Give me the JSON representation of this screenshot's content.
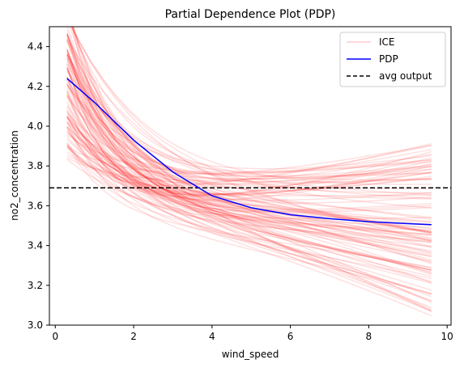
{
  "chart_data": {
    "type": "line",
    "title": "Partial Dependence Plot (PDP)",
    "xlabel": "wind_speed",
    "ylabel": "no2_concentration",
    "xlim": [
      -0.15,
      10.1
    ],
    "ylim": [
      3.0,
      4.5
    ],
    "x_ticks": [
      0,
      2,
      4,
      6,
      8,
      10
    ],
    "y_ticks": [
      3.0,
      3.2,
      3.4,
      3.6,
      3.8,
      4.0,
      4.2,
      4.4
    ],
    "x_tick_labels": [
      "0",
      "2",
      "4",
      "6",
      "8",
      "10"
    ],
    "y_tick_labels": [
      "3.0",
      "3.2",
      "3.4",
      "3.6",
      "3.8",
      "4.0",
      "4.2",
      "4.4"
    ],
    "grid": false,
    "legend_position": "top-right",
    "legend": [
      {
        "label": "ICE",
        "color": "#ff0000",
        "style": "line-faint"
      },
      {
        "label": "PDP",
        "color": "#0000ff",
        "style": "line"
      },
      {
        "label": "avg output",
        "color": "#000000",
        "style": "dashed"
      }
    ],
    "series": [
      {
        "name": "PDP",
        "color": "#0000ff",
        "x": [
          0.3,
          1.0,
          2.0,
          3.0,
          4.0,
          5.0,
          6.0,
          7.0,
          8.0,
          9.0,
          9.6
        ],
        "y": [
          4.24,
          4.12,
          3.93,
          3.77,
          3.65,
          3.59,
          3.555,
          3.535,
          3.52,
          3.51,
          3.505
        ]
      },
      {
        "name": "avg output",
        "color": "#000000",
        "constant_y": 3.69
      }
    ],
    "ice_curves": {
      "name": "ICE",
      "color": "#ff0000",
      "opacity": 0.12,
      "count": 110,
      "x_range": [
        0.3,
        9.6
      ],
      "start_y_range": [
        3.82,
        4.62
      ],
      "end_y_range": [
        3.04,
        3.92
      ]
    }
  }
}
